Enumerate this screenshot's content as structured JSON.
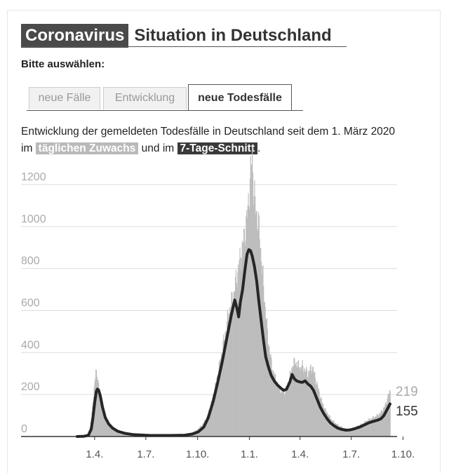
{
  "header": {
    "title_tag": "Coronavirus",
    "title_rest": "Situation in Deutschland",
    "select_label": "Bitte auswählen:"
  },
  "tabs": [
    {
      "label": "neue Fälle",
      "active": false
    },
    {
      "label": "Entwicklung",
      "active": false
    },
    {
      "label": "neue Todesfälle",
      "active": true
    }
  ],
  "description": {
    "text1": "Entwicklung der gemeldeten Todesfälle in Deutschland seit dem 1. März 2020",
    "text2": "im",
    "highlight1": "täglichen Zuwachs",
    "text3": "und im",
    "highlight2": "7-Tage-Schnitt",
    "text4": "."
  },
  "colors": {
    "bars": "#bdbdbd",
    "line": "#262626",
    "grid": "#dddddd",
    "tick_label": "#aaaaaa"
  },
  "chart_data": {
    "type": "bar",
    "title": "",
    "xlabel": "",
    "ylabel": "",
    "ylim": [
      0,
      1300
    ],
    "yticks": [
      0,
      200,
      400,
      600,
      800,
      1000,
      1200
    ],
    "grid": true,
    "x_ticks": [
      "1.4.",
      "1.7.",
      "1.10.",
      "1.1.",
      "1.4.",
      "1.7.",
      "1.10."
    ],
    "x_tick_days": [
      31,
      122,
      214,
      306,
      396,
      487,
      579
    ],
    "start_date": "2020-03-01",
    "daily_keyframes": [
      [
        0,
        0
      ],
      [
        10,
        2
      ],
      [
        18,
        8
      ],
      [
        23,
        45
      ],
      [
        26,
        120
      ],
      [
        29,
        190
      ],
      [
        31,
        250
      ],
      [
        33,
        340
      ],
      [
        35,
        280
      ],
      [
        37,
        260
      ],
      [
        40,
        200
      ],
      [
        44,
        150
      ],
      [
        48,
        105
      ],
      [
        53,
        70
      ],
      [
        58,
        50
      ],
      [
        65,
        35
      ],
      [
        80,
        20
      ],
      [
        100,
        12
      ],
      [
        130,
        6
      ],
      [
        160,
        5
      ],
      [
        180,
        6
      ],
      [
        195,
        10
      ],
      [
        205,
        20
      ],
      [
        212,
        30
      ],
      [
        222,
        55
      ],
      [
        230,
        90
      ],
      [
        238,
        160
      ],
      [
        246,
        250
      ],
      [
        254,
        360
      ],
      [
        262,
        480
      ],
      [
        270,
        600
      ],
      [
        278,
        680
      ],
      [
        286,
        800
      ],
      [
        292,
        880
      ],
      [
        297,
        960
      ],
      [
        302,
        1050
      ],
      [
        306,
        1180
      ],
      [
        309,
        1280
      ],
      [
        311,
        1345
      ],
      [
        313,
        1200
      ],
      [
        316,
        1100
      ],
      [
        320,
        1050
      ],
      [
        324,
        960
      ],
      [
        328,
        820
      ],
      [
        332,
        680
      ],
      [
        337,
        520
      ],
      [
        342,
        400
      ],
      [
        347,
        320
      ],
      [
        352,
        280
      ],
      [
        357,
        240
      ],
      [
        362,
        220
      ],
      [
        367,
        210
      ],
      [
        372,
        230
      ],
      [
        378,
        290
      ],
      [
        383,
        345
      ],
      [
        388,
        355
      ],
      [
        392,
        340
      ],
      [
        396,
        330
      ],
      [
        400,
        335
      ],
      [
        405,
        315
      ],
      [
        410,
        300
      ],
      [
        414,
        320
      ],
      [
        418,
        330
      ],
      [
        422,
        290
      ],
      [
        426,
        250
      ],
      [
        430,
        210
      ],
      [
        434,
        170
      ],
      [
        440,
        130
      ],
      [
        446,
        105
      ],
      [
        452,
        80
      ],
      [
        458,
        65
      ],
      [
        466,
        50
      ],
      [
        474,
        40
      ],
      [
        482,
        35
      ],
      [
        490,
        40
      ],
      [
        498,
        50
      ],
      [
        506,
        60
      ],
      [
        514,
        75
      ],
      [
        522,
        85
      ],
      [
        530,
        95
      ],
      [
        538,
        110
      ],
      [
        546,
        140
      ],
      [
        550,
        170
      ],
      [
        553,
        200
      ],
      [
        556,
        219
      ]
    ],
    "avg_keyframes": [
      [
        0,
        0
      ],
      [
        12,
        1
      ],
      [
        20,
        6
      ],
      [
        25,
        35
      ],
      [
        28,
        90
      ],
      [
        31,
        160
      ],
      [
        34,
        215
      ],
      [
        36,
        226
      ],
      [
        38,
        222
      ],
      [
        41,
        195
      ],
      [
        45,
        140
      ],
      [
        50,
        90
      ],
      [
        56,
        60
      ],
      [
        63,
        40
      ],
      [
        72,
        25
      ],
      [
        85,
        15
      ],
      [
        100,
        9
      ],
      [
        130,
        5
      ],
      [
        165,
        5
      ],
      [
        190,
        6
      ],
      [
        205,
        12
      ],
      [
        215,
        22
      ],
      [
        225,
        45
      ],
      [
        233,
        90
      ],
      [
        242,
        170
      ],
      [
        250,
        260
      ],
      [
        258,
        360
      ],
      [
        266,
        470
      ],
      [
        274,
        580
      ],
      [
        280,
        650
      ],
      [
        284,
        610
      ],
      [
        287,
        570
      ],
      [
        290,
        640
      ],
      [
        294,
        700
      ],
      [
        298,
        790
      ],
      [
        302,
        870
      ],
      [
        305,
        890
      ],
      [
        308,
        885
      ],
      [
        311,
        860
      ],
      [
        315,
        810
      ],
      [
        319,
        740
      ],
      [
        323,
        640
      ],
      [
        327,
        550
      ],
      [
        331,
        460
      ],
      [
        335,
        380
      ],
      [
        340,
        330
      ],
      [
        345,
        290
      ],
      [
        350,
        265
      ],
      [
        356,
        245
      ],
      [
        362,
        230
      ],
      [
        367,
        220
      ],
      [
        372,
        225
      ],
      [
        378,
        260
      ],
      [
        382,
        295
      ],
      [
        386,
        275
      ],
      [
        390,
        265
      ],
      [
        395,
        260
      ],
      [
        400,
        258
      ],
      [
        405,
        265
      ],
      [
        410,
        250
      ],
      [
        415,
        240
      ],
      [
        420,
        220
      ],
      [
        426,
        180
      ],
      [
        432,
        140
      ],
      [
        438,
        110
      ],
      [
        444,
        85
      ],
      [
        450,
        65
      ],
      [
        456,
        52
      ],
      [
        463,
        40
      ],
      [
        470,
        34
      ],
      [
        478,
        30
      ],
      [
        486,
        32
      ],
      [
        494,
        38
      ],
      [
        502,
        45
      ],
      [
        510,
        55
      ],
      [
        518,
        65
      ],
      [
        526,
        72
      ],
      [
        534,
        78
      ],
      [
        540,
        85
      ],
      [
        545,
        100
      ],
      [
        549,
        120
      ],
      [
        553,
        140
      ],
      [
        556,
        155
      ]
    ],
    "end_labels": [
      {
        "name": "daily",
        "value": "219"
      },
      {
        "name": "avg",
        "value": "155"
      }
    ]
  }
}
